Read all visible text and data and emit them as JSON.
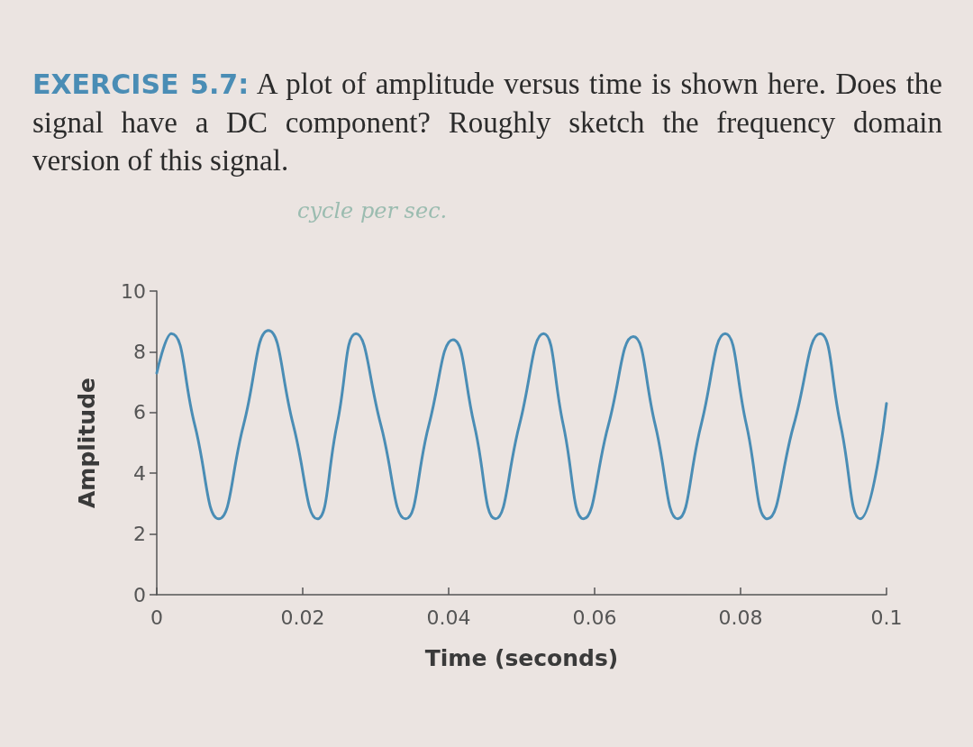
{
  "chart_data": {
    "type": "line",
    "title": "EXERCISE 5.7:",
    "subtitle": "A plot of amplitude versus time is shown here. Does the signal have a DC component? Roughly sketch the frequency domain version of this signal.",
    "annotations": [
      "cycle per sec."
    ],
    "xlabel": "Time (seconds)",
    "ylabel": "Amplitude",
    "x": [
      0,
      0.002,
      0.0052,
      0.0085,
      0.0119,
      0.0153,
      0.0187,
      0.022,
      0.0247,
      0.0273,
      0.0307,
      0.0341,
      0.0373,
      0.0406,
      0.0435,
      0.0464,
      0.0497,
      0.053,
      0.0557,
      0.0585,
      0.0619,
      0.0653,
      0.0683,
      0.0714,
      0.0746,
      0.0779,
      0.0808,
      0.0837,
      0.0873,
      0.0909,
      0.0937,
      0.0964,
      0.1
    ],
    "series": [
      {
        "color": "#4a8db5",
        "values": [
          7.3,
          8.6,
          5.6,
          2.5,
          5.6,
          8.7,
          5.6,
          2.5,
          5.6,
          8.6,
          5.6,
          2.5,
          5.6,
          8.4,
          5.6,
          2.5,
          5.6,
          8.6,
          5.6,
          2.5,
          5.6,
          8.5,
          5.6,
          2.5,
          5.6,
          8.6,
          5.6,
          2.5,
          5.6,
          8.6,
          5.6,
          2.5,
          6.3
        ]
      }
    ],
    "xlim": [
      0,
      0.1
    ],
    "ylim": [
      0,
      10
    ],
    "xticks": [
      0,
      0.02,
      0.04,
      0.06,
      0.08,
      0.1
    ],
    "yticks": [
      0,
      2,
      4,
      6,
      8,
      10
    ]
  }
}
